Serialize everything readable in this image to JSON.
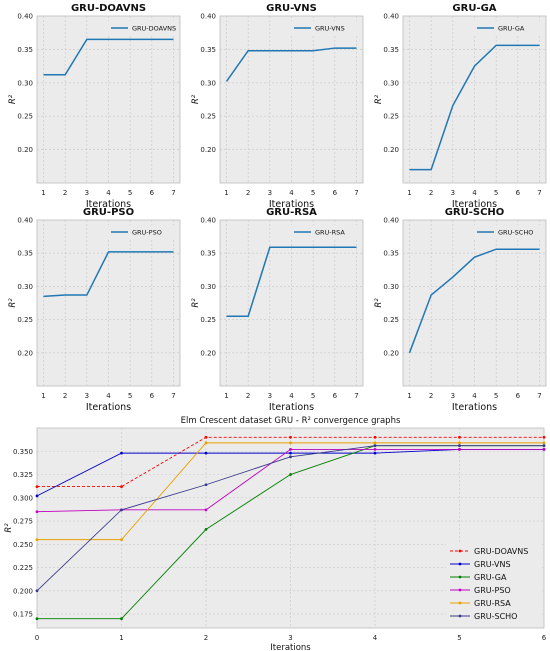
{
  "chart_data": [
    {
      "type": "line",
      "title": "GRU-DOAVNS",
      "xlabel": "Iterations",
      "ylabel": "R²",
      "x": [
        1,
        2,
        3,
        4,
        5,
        6,
        7
      ],
      "ylim": [
        0.15,
        0.4
      ],
      "yticks": [
        0.2,
        0.25,
        0.3,
        0.35,
        0.4
      ],
      "grid": true,
      "legend": "top-right",
      "series": [
        {
          "name": "GRU-DOAVNS",
          "color": "#1f77b4",
          "values": [
            0.312,
            0.312,
            0.365,
            0.365,
            0.365,
            0.365,
            0.365
          ]
        }
      ]
    },
    {
      "type": "line",
      "title": "GRU-VNS",
      "xlabel": "",
      "ylabel": "R²",
      "x": [
        1,
        2,
        3,
        4,
        5,
        6,
        7
      ],
      "ylim": [
        0.15,
        0.4
      ],
      "yticks": [
        0.2,
        0.25,
        0.3,
        0.35,
        0.4
      ],
      "grid": true,
      "legend": "top-right",
      "series": [
        {
          "name": "GRU-VNS",
          "color": "#1f77b4",
          "values": [
            0.302,
            0.348,
            0.348,
            0.348,
            0.348,
            0.352,
            0.352
          ]
        }
      ]
    },
    {
      "type": "line",
      "title": "GRU-GA",
      "xlabel": "",
      "ylabel": "R²",
      "x": [
        1,
        2,
        3,
        4,
        5,
        6,
        7
      ],
      "ylim": [
        0.15,
        0.4
      ],
      "yticks": [
        0.2,
        0.25,
        0.3,
        0.35,
        0.4
      ],
      "grid": true,
      "legend": "top-right",
      "series": [
        {
          "name": "GRU-GA",
          "color": "#1f77b4",
          "values": [
            0.17,
            0.17,
            0.266,
            0.325,
            0.356,
            0.356,
            0.356
          ]
        }
      ]
    },
    {
      "type": "line",
      "title": "GRU-PSO",
      "xlabel": "",
      "ylabel": "R²",
      "x": [
        1,
        2,
        3,
        4,
        5,
        6,
        7
      ],
      "ylim": [
        0.15,
        0.4
      ],
      "yticks": [
        0.2,
        0.25,
        0.3,
        0.35,
        0.4
      ],
      "grid": true,
      "legend": "top-right",
      "series": [
        {
          "name": "GRU-PSO",
          "color": "#1f77b4",
          "values": [
            0.285,
            0.287,
            0.287,
            0.352,
            0.352,
            0.352,
            0.352
          ]
        }
      ]
    },
    {
      "type": "line",
      "title": "GRU-RSA",
      "xlabel": "Iterations",
      "ylabel": "R²",
      "x": [
        1,
        2,
        3,
        4,
        5,
        6,
        7
      ],
      "ylim": [
        0.15,
        0.4
      ],
      "yticks": [
        0.2,
        0.25,
        0.3,
        0.35,
        0.4
      ],
      "grid": true,
      "legend": "top-right",
      "series": [
        {
          "name": "GRU-RSA",
          "color": "#1f77b4",
          "values": [
            0.255,
            0.255,
            0.359,
            0.359,
            0.359,
            0.359,
            0.359
          ]
        }
      ]
    },
    {
      "type": "line",
      "title": "GRU-SCHO",
      "xlabel": "",
      "ylabel": "R²",
      "x": [
        1,
        2,
        3,
        4,
        5,
        6,
        7
      ],
      "ylim": [
        0.15,
        0.4
      ],
      "yticks": [
        0.2,
        0.25,
        0.3,
        0.35,
        0.4
      ],
      "grid": true,
      "legend": "top-right",
      "series": [
        {
          "name": "GRU-SCHO",
          "color": "#1f77b4",
          "values": [
            0.2,
            0.287,
            0.314,
            0.344,
            0.356,
            0.356,
            0.356
          ]
        }
      ]
    },
    {
      "type": "line",
      "title": "Elm Crescent dataset GRU -  R² convergence graphs",
      "xlabel": "Iterations",
      "ylabel": "R²",
      "x": [
        0,
        1,
        2,
        3,
        4,
        5,
        6
      ],
      "xlim": [
        0,
        6
      ],
      "ylim": [
        0.16,
        0.375
      ],
      "yticks": [
        0.175,
        0.2,
        0.225,
        0.25,
        0.275,
        0.3,
        0.325,
        0.35
      ],
      "grid": true,
      "legend": "lower-right",
      "series": [
        {
          "name": "GRU-DOAVNS",
          "color": "#ff0000",
          "dash": true,
          "values": [
            0.312,
            0.312,
            0.365,
            0.365,
            0.365,
            0.365,
            0.365
          ]
        },
        {
          "name": "GRU-VNS",
          "color": "#0000cc",
          "values": [
            0.302,
            0.348,
            0.348,
            0.348,
            0.348,
            0.352,
            0.352
          ]
        },
        {
          "name": "GRU-GA",
          "color": "#008000",
          "values": [
            0.17,
            0.17,
            0.266,
            0.325,
            0.356,
            0.356,
            0.356
          ]
        },
        {
          "name": "GRU-PSO",
          "color": "#c000c0",
          "values": [
            0.285,
            0.287,
            0.287,
            0.352,
            0.352,
            0.352,
            0.352
          ]
        },
        {
          "name": "GRU-RSA",
          "color": "#e8a000",
          "values": [
            0.255,
            0.255,
            0.359,
            0.359,
            0.359,
            0.359,
            0.359
          ]
        },
        {
          "name": "GRU-SCHO",
          "color": "#3a3a8a",
          "values": [
            0.2,
            0.287,
            0.314,
            0.344,
            0.356,
            0.356,
            0.356
          ]
        }
      ]
    }
  ]
}
